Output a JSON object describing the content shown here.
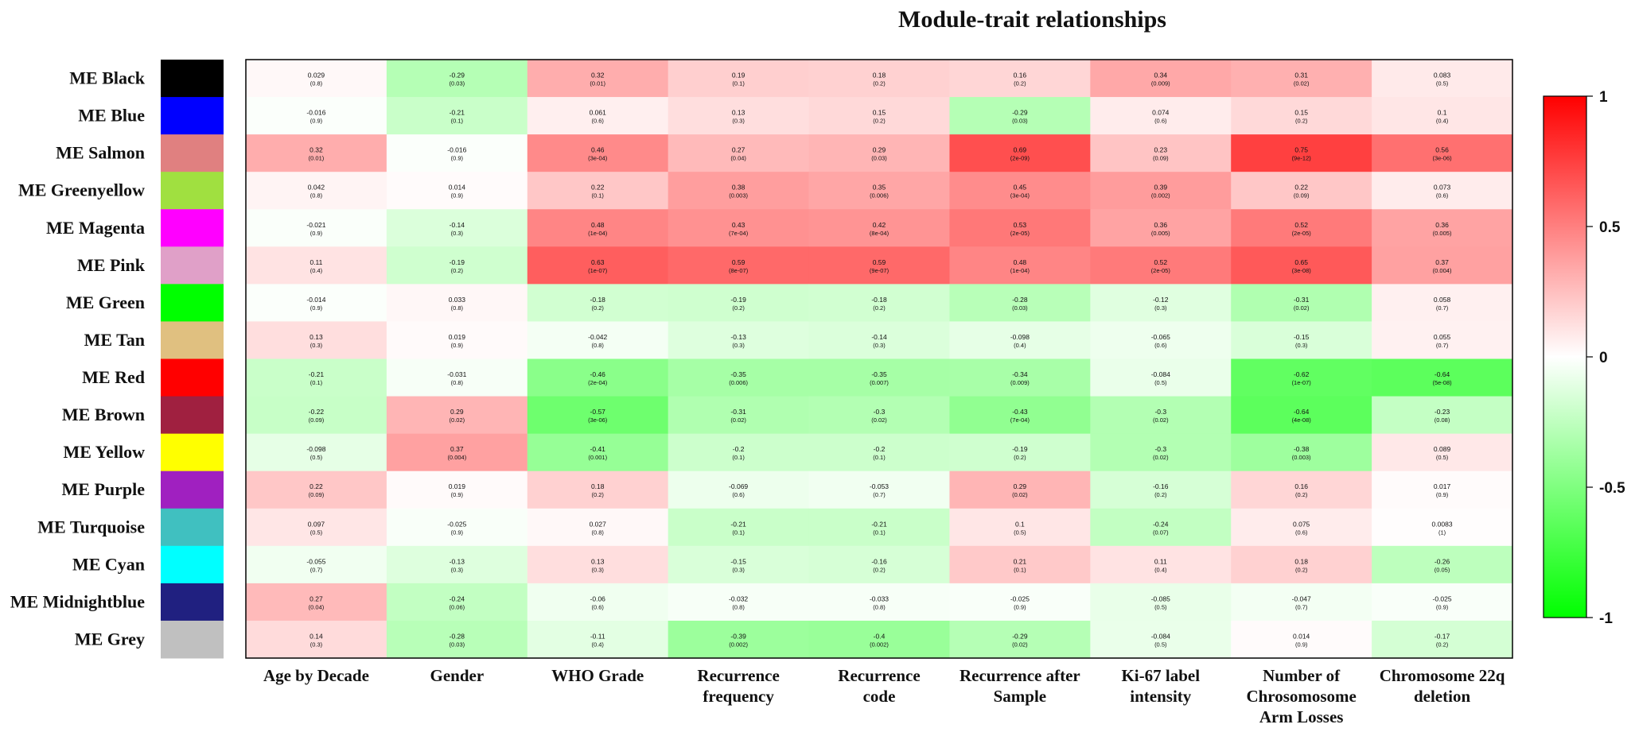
{
  "chart_data": {
    "type": "heatmap",
    "title": "Module-trait relationships",
    "rows": [
      {
        "label": "ME Black",
        "color": "#000000"
      },
      {
        "label": "ME Blue",
        "color": "#0000FF"
      },
      {
        "label": "ME Salmon",
        "color": "#E08080"
      },
      {
        "label": "ME Greenyellow",
        "color": "#A0E040"
      },
      {
        "label": "ME Magenta",
        "color": "#FF00FF"
      },
      {
        "label": "ME Pink",
        "color": "#E0A0C8"
      },
      {
        "label": "ME Green",
        "color": "#00FF00"
      },
      {
        "label": "ME Tan",
        "color": "#E0C080"
      },
      {
        "label": "ME Red",
        "color": "#FF0000"
      },
      {
        "label": "ME Brown",
        "color": "#A02040"
      },
      {
        "label": "ME Yellow",
        "color": "#FFFF00"
      },
      {
        "label": "ME Purple",
        "color": "#A020C0"
      },
      {
        "label": "ME Turquoise",
        "color": "#40C0C0"
      },
      {
        "label": "ME Cyan",
        "color": "#00FFFF"
      },
      {
        "label": "ME Midnightblue",
        "color": "#202080"
      },
      {
        "label": "ME Grey",
        "color": "#C0C0C0"
      }
    ],
    "columns": [
      [
        "Age by Decade"
      ],
      [
        "Gender"
      ],
      [
        "WHO  Grade"
      ],
      [
        "Recurrence",
        "frequency"
      ],
      [
        "Recurrence",
        "code"
      ],
      [
        "Recurrence after",
        "Sample"
      ],
      [
        "Ki-67 label",
        "intensity"
      ],
      [
        "Number of",
        "Chrosomosome",
        "Arm Losses"
      ],
      [
        "Chromosome 22q",
        "deletion"
      ]
    ],
    "values": [
      [
        0.029,
        -0.29,
        0.32,
        0.19,
        0.18,
        0.16,
        0.34,
        0.31,
        0.083
      ],
      [
        -0.016,
        -0.21,
        0.061,
        0.13,
        0.15,
        -0.29,
        0.074,
        0.15,
        0.1
      ],
      [
        0.32,
        -0.016,
        0.46,
        0.27,
        0.29,
        0.69,
        0.23,
        0.75,
        0.56
      ],
      [
        0.042,
        0.014,
        0.22,
        0.38,
        0.35,
        0.45,
        0.39,
        0.22,
        0.073
      ],
      [
        -0.021,
        -0.14,
        0.48,
        0.43,
        0.42,
        0.53,
        0.36,
        0.52,
        0.36
      ],
      [
        0.11,
        -0.19,
        0.63,
        0.59,
        0.59,
        0.48,
        0.52,
        0.65,
        0.37
      ],
      [
        -0.014,
        0.033,
        -0.18,
        -0.19,
        -0.18,
        -0.28,
        -0.12,
        -0.31,
        0.058
      ],
      [
        0.13,
        0.019,
        -0.042,
        -0.13,
        -0.14,
        -0.098,
        -0.065,
        -0.15,
        0.055
      ],
      [
        -0.21,
        -0.031,
        -0.46,
        -0.35,
        -0.35,
        -0.34,
        -0.084,
        -0.62,
        -0.64
      ],
      [
        -0.22,
        0.29,
        -0.57,
        -0.31,
        -0.3,
        -0.43,
        -0.3,
        -0.64,
        -0.23
      ],
      [
        -0.098,
        0.37,
        -0.41,
        -0.2,
        -0.2,
        -0.19,
        -0.3,
        -0.38,
        0.089
      ],
      [
        0.22,
        0.019,
        0.18,
        -0.069,
        -0.053,
        0.29,
        -0.16,
        0.16,
        0.017
      ],
      [
        0.097,
        -0.025,
        0.027,
        -0.21,
        -0.21,
        0.1,
        -0.24,
        0.075,
        0.0083
      ],
      [
        -0.055,
        -0.13,
        0.13,
        -0.15,
        -0.16,
        0.21,
        0.11,
        0.18,
        -0.26
      ],
      [
        0.27,
        -0.24,
        -0.06,
        -0.032,
        -0.033,
        -0.025,
        -0.085,
        -0.047,
        -0.025
      ],
      [
        0.14,
        -0.28,
        -0.11,
        -0.39,
        -0.4,
        -0.29,
        -0.084,
        0.014,
        -0.17
      ]
    ],
    "value_labels": [
      [
        "0.029",
        "-0.29",
        "0.32",
        "0.19",
        "0.18",
        "0.16",
        "0.34",
        "0.31",
        "0.083"
      ],
      [
        "-0.016",
        "-0.21",
        "0.061",
        "0.13",
        "0.15",
        "-0.29",
        "0.074",
        "0.15",
        "0.1"
      ],
      [
        "0.32",
        "-0.016",
        "0.46",
        "0.27",
        "0.29",
        "0.69",
        "0.23",
        "0.75",
        "0.56"
      ],
      [
        "0.042",
        "0.014",
        "0.22",
        "0.38",
        "0.35",
        "0.45",
        "0.39",
        "0.22",
        "0.073"
      ],
      [
        "-0.021",
        "-0.14",
        "0.48",
        "0.43",
        "0.42",
        "0.53",
        "0.36",
        "0.52",
        "0.36"
      ],
      [
        "0.11",
        "-0.19",
        "0.63",
        "0.59",
        "0.59",
        "0.48",
        "0.52",
        "0.65",
        "0.37"
      ],
      [
        "-0.014",
        "0.033",
        "-0.18",
        "-0.19",
        "-0.18",
        "-0.28",
        "-0.12",
        "-0.31",
        "0.058"
      ],
      [
        "0.13",
        "0.019",
        "-0.042",
        "-0.13",
        "-0.14",
        "-0.098",
        "-0.065",
        "-0.15",
        "0.055"
      ],
      [
        "-0.21",
        "-0.031",
        "-0.46",
        "-0.35",
        "-0.35",
        "-0.34",
        "-0.084",
        "-0.62",
        "-0.64"
      ],
      [
        "-0.22",
        "0.29",
        "-0.57",
        "-0.31",
        "-0.3",
        "-0.43",
        "-0.3",
        "-0.64",
        "-0.23"
      ],
      [
        "-0.098",
        "0.37",
        "-0.41",
        "-0.2",
        "-0.2",
        "-0.19",
        "-0.3",
        "-0.38",
        "0.089"
      ],
      [
        "0.22",
        "0.019",
        "0.18",
        "-0.069",
        "-0.053",
        "0.29",
        "-0.16",
        "0.16",
        "0.017"
      ],
      [
        "0.097",
        "-0.025",
        "0.027",
        "-0.21",
        "-0.21",
        "0.1",
        "-0.24",
        "0.075",
        "0.0083"
      ],
      [
        "-0.055",
        "-0.13",
        "0.13",
        "-0.15",
        "-0.16",
        "0.21",
        "0.11",
        "0.18",
        "-0.26"
      ],
      [
        "0.27",
        "-0.24",
        "-0.06",
        "-0.032",
        "-0.033",
        "-0.025",
        "-0.085",
        "-0.047",
        "-0.025"
      ],
      [
        "0.14",
        "-0.28",
        "-0.11",
        "-0.39",
        "-0.4",
        "-0.29",
        "-0.084",
        "0.014",
        "-0.17"
      ]
    ],
    "pvalues": [
      [
        "(0.8)",
        "(0.03)",
        "(0.01)",
        "(0.1)",
        "(0.2)",
        "(0.2)",
        "(0.009)",
        "(0.02)",
        "(0.5)"
      ],
      [
        "(0.9)",
        "(0.1)",
        "(0.6)",
        "(0.3)",
        "(0.2)",
        "(0.03)",
        "(0.6)",
        "(0.2)",
        "(0.4)"
      ],
      [
        "(0.01)",
        "(0.9)",
        "(3e-04)",
        "(0.04)",
        "(0.03)",
        "(2e-09)",
        "(0.09)",
        "(9e-12)",
        "(3e-06)"
      ],
      [
        "(0.8)",
        "(0.9)",
        "(0.1)",
        "(0.003)",
        "(0.006)",
        "(3e-04)",
        "(0.002)",
        "(0.09)",
        "(0.6)"
      ],
      [
        "(0.9)",
        "(0.3)",
        "(1e-04)",
        "(7e-04)",
        "(8e-04)",
        "(2e-05)",
        "(0.005)",
        "(2e-05)",
        "(0.005)"
      ],
      [
        "(0.4)",
        "(0.2)",
        "(1e-07)",
        "(8e-07)",
        "(9e-07)",
        "(1e-04)",
        "(2e-05)",
        "(3e-08)",
        "(0.004)"
      ],
      [
        "(0.9)",
        "(0.8)",
        "(0.2)",
        "(0.2)",
        "(0.2)",
        "(0.03)",
        "(0.3)",
        "(0.02)",
        "(0.7)"
      ],
      [
        "(0.3)",
        "(0.9)",
        "(0.8)",
        "(0.3)",
        "(0.3)",
        "(0.4)",
        "(0.6)",
        "(0.3)",
        "(0.7)"
      ],
      [
        "(0.1)",
        "(0.8)",
        "(2e-04)",
        "(0.006)",
        "(0.007)",
        "(0.009)",
        "(0.5)",
        "(1e-07)",
        "(5e-08)"
      ],
      [
        "(0.09)",
        "(0.02)",
        "(3e-06)",
        "(0.02)",
        "(0.02)",
        "(7e-04)",
        "(0.02)",
        "(4e-08)",
        "(0.08)"
      ],
      [
        "(0.5)",
        "(0.004)",
        "(0.001)",
        "(0.1)",
        "(0.1)",
        "(0.2)",
        "(0.02)",
        "(0.003)",
        "(0.5)"
      ],
      [
        "(0.09)",
        "(0.9)",
        "(0.2)",
        "(0.6)",
        "(0.7)",
        "(0.02)",
        "(0.2)",
        "(0.2)",
        "(0.9)"
      ],
      [
        "(0.5)",
        "(0.9)",
        "(0.8)",
        "(0.1)",
        "(0.1)",
        "(0.5)",
        "(0.07)",
        "(0.6)",
        "(1)"
      ],
      [
        "(0.7)",
        "(0.3)",
        "(0.3)",
        "(0.3)",
        "(0.2)",
        "(0.1)",
        "(0.4)",
        "(0.2)",
        "(0.05)"
      ],
      [
        "(0.04)",
        "(0.06)",
        "(0.6)",
        "(0.8)",
        "(0.8)",
        "(0.9)",
        "(0.5)",
        "(0.7)",
        "(0.9)"
      ],
      [
        "(0.3)",
        "(0.03)",
        "(0.4)",
        "(0.002)",
        "(0.002)",
        "(0.02)",
        "(0.5)",
        "(0.9)",
        "(0.2)"
      ]
    ],
    "colorbar": {
      "range": [
        -1,
        1
      ],
      "ticks": [
        {
          "value": 1,
          "label": "1"
        },
        {
          "value": 0.5,
          "label": "0.5"
        },
        {
          "value": 0,
          "label": "0"
        },
        {
          "value": -0.5,
          "label": "-0.5"
        },
        {
          "value": -1,
          "label": "-1"
        }
      ],
      "low_color": "#00FF00",
      "mid_color": "#FFFFFF",
      "high_color": "#FF0000"
    }
  }
}
